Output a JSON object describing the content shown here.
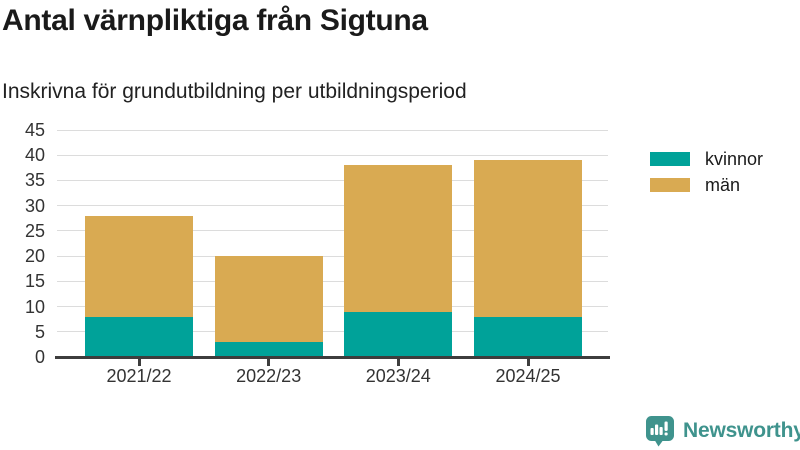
{
  "chart_data": {
    "type": "bar",
    "stacked": true,
    "title": "Antal värnpliktiga från Sigtuna",
    "subtitle": "Inskrivna för grundutbildning per utbildningsperiod",
    "categories": [
      "2021/22",
      "2022/23",
      "2023/24",
      "2024/25"
    ],
    "series": [
      {
        "name": "kvinnor",
        "color": "#00a299",
        "values": [
          8,
          3,
          9,
          8
        ]
      },
      {
        "name": "män",
        "color": "#d9aa52",
        "values": [
          20,
          17,
          29,
          31
        ]
      }
    ],
    "xlabel": "",
    "ylabel": "",
    "ylim": [
      0,
      45
    ],
    "ytick_step": 5,
    "grid": true,
    "legend_position": "right"
  },
  "colors": {
    "gridline": "#dcdcdc",
    "axis_line": "#3d3d3d",
    "axis_text": "#333333",
    "title_text": "#1a1a1a"
  },
  "branding": {
    "logo_text": "Newsworthy",
    "logo_color": "#3f938d"
  }
}
